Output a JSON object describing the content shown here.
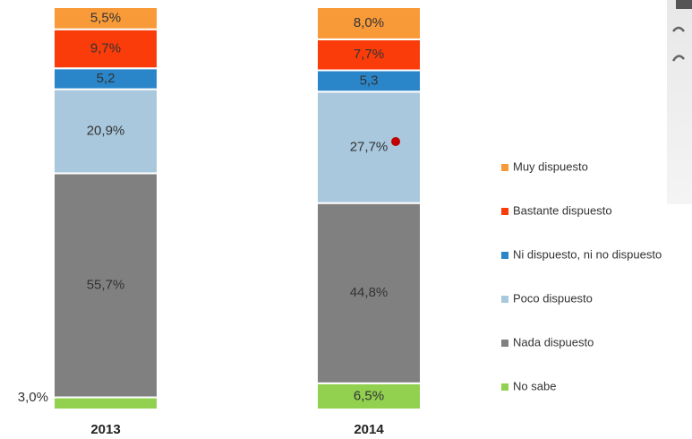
{
  "chart_data": {
    "type": "stacked_bar",
    "categories": [
      "2013",
      "2014"
    ],
    "series": [
      {
        "name": "No sabe",
        "color": "#92d050",
        "values": [
          3.0,
          6.5
        ],
        "value_labels": [
          "3,0%",
          "6,5%"
        ]
      },
      {
        "name": "Nada dispuesto",
        "color": "#808080",
        "values": [
          55.7,
          44.8
        ],
        "value_labels": [
          "55,7%",
          "44,8%"
        ]
      },
      {
        "name": "Poco dispuesto",
        "color": "#a9c8dd",
        "values": [
          20.9,
          27.7
        ],
        "value_labels": [
          "20,9%",
          "27,7%"
        ]
      },
      {
        "name": "Ni dispuesto, ni no dispuesto",
        "color": "#2b86c9",
        "values": [
          5.2,
          5.3
        ],
        "value_labels": [
          "5,2",
          "5,3"
        ]
      },
      {
        "name": "Bastante dispuesto",
        "color": "#fa3c0a",
        "values": [
          9.7,
          7.7
        ],
        "value_labels": [
          "9,7%",
          "7,7%"
        ]
      },
      {
        "name": "Muy dispuesto",
        "color": "#f99a39",
        "values": [
          5.5,
          8.0
        ],
        "value_labels": [
          "5,5%",
          "8,0%"
        ]
      }
    ],
    "legend": "right"
  }
}
